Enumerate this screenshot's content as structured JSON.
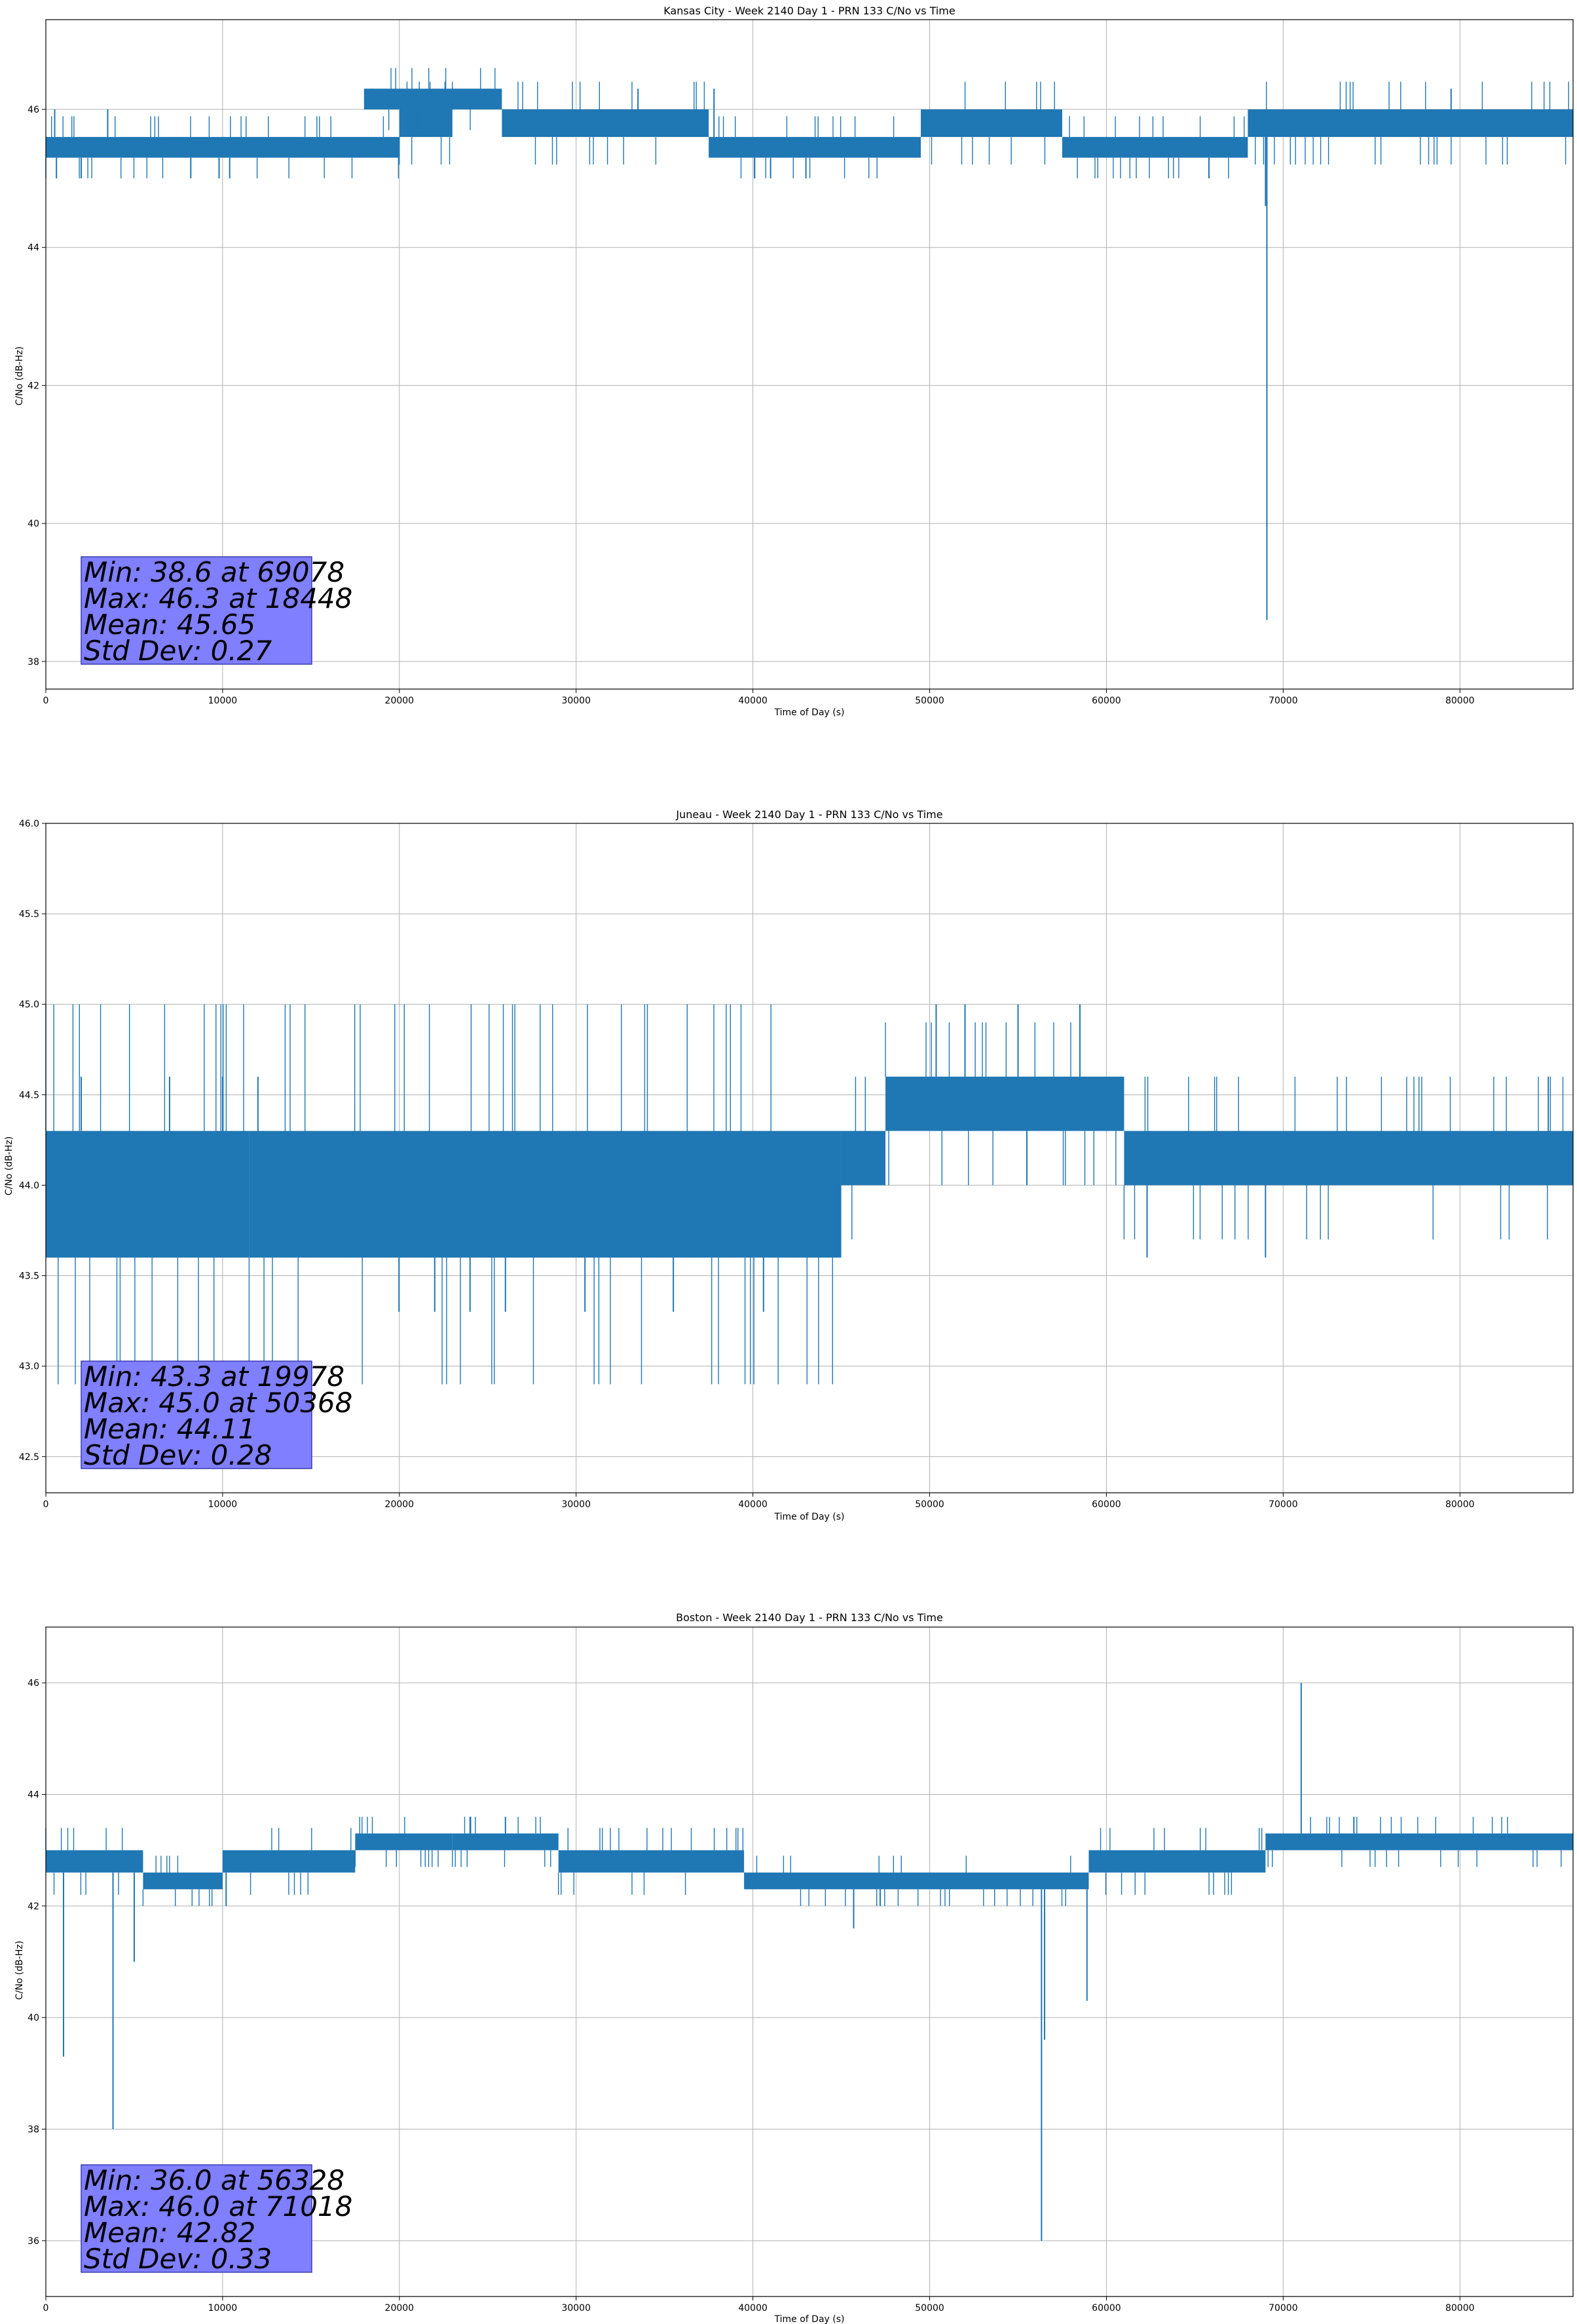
{
  "chart_data": [
    {
      "type": "line",
      "title": "Kansas City - Week 2140 Day 1 - PRN 133 C/No vs Time",
      "xlabel": "Time of Day (s)",
      "ylabel": "C/No (dB-Hz)",
      "xlim": [
        0,
        86400
      ],
      "ylim": [
        37.6,
        47.3
      ],
      "xticks": [
        0,
        10000,
        20000,
        30000,
        40000,
        50000,
        60000,
        70000,
        80000
      ],
      "yticks": [
        38,
        40,
        42,
        44,
        46
      ],
      "grid": true,
      "color": "#1f77b4",
      "series": [
        {
          "bands": [
            {
              "x": [
                0,
                20000
              ],
              "y": [
                45.3,
                45.6
              ]
            },
            {
              "x": [
                20000,
                23000
              ],
              "y": [
                45.6,
                46.0
              ]
            },
            {
              "x": [
                18000,
                25800
              ],
              "y": [
                46.0,
                46.3
              ]
            },
            {
              "x": [
                25800,
                37500
              ],
              "y": [
                45.6,
                46.0
              ]
            },
            {
              "x": [
                37500,
                49500
              ],
              "y": [
                45.3,
                45.6
              ]
            },
            {
              "x": [
                49500,
                57500
              ],
              "y": [
                45.6,
                46.0
              ]
            },
            {
              "x": [
                57500,
                68000
              ],
              "y": [
                45.3,
                45.6
              ]
            },
            {
              "x": [
                68000,
                86400
              ],
              "y": [
                45.6,
                46.0
              ]
            }
          ],
          "spikes": [
            {
              "x": 500,
              "y": 46.0
            },
            {
              "x": 600,
              "y": 45.0
            },
            {
              "x": 2000,
              "y": 45.0
            },
            {
              "x": 3500,
              "y": 46.0
            },
            {
              "x": 8200,
              "y": 45.0
            },
            {
              "x": 9800,
              "y": 45.0
            },
            {
              "x": 10400,
              "y": 45.0
            },
            {
              "x": 17500,
              "y": 45.3
            },
            {
              "x": 18448,
              "y": 46.3
            },
            {
              "x": 33500,
              "y": 46.3
            },
            {
              "x": 37800,
              "y": 46.3
            },
            {
              "x": 40100,
              "y": 45.0
            },
            {
              "x": 41000,
              "y": 45.0
            },
            {
              "x": 43000,
              "y": 45.0
            },
            {
              "x": 65800,
              "y": 45.0
            },
            {
              "x": 69000,
              "y": 44.6
            },
            {
              "x": 69078,
              "y": 38.6
            },
            {
              "x": 79500,
              "y": 46.3
            }
          ]
        }
      ],
      "stats": {
        "min_text": "Min: 38.6 at 69078",
        "max_text": "Max: 46.3 at 18448",
        "mean_text": "Mean: 45.65",
        "std_text": "Std Dev: 0.27"
      }
    },
    {
      "type": "line",
      "title": "Juneau - Week 2140 Day 1 - PRN 133 C/No vs Time",
      "xlabel": "Time of Day (s)",
      "ylabel": "C/No (dB-Hz)",
      "xlim": [
        0,
        86400
      ],
      "ylim": [
        42.3,
        46.0
      ],
      "xticks": [
        0,
        10000,
        20000,
        30000,
        40000,
        50000,
        60000,
        70000,
        80000
      ],
      "yticks": [
        42.5,
        43.0,
        43.5,
        44.0,
        44.5,
        45.0,
        45.5,
        46.0
      ],
      "ytick_labels": [
        "42.5",
        "43.0",
        "43.5",
        "44.0",
        "44.5",
        "45.0",
        "45.5",
        "46.0"
      ],
      "grid": true,
      "color": "#1f77b4",
      "series": [
        {
          "bands": [
            {
              "x": [
                0,
                11500
              ],
              "y": [
                43.6,
                44.3
              ]
            },
            {
              "x": [
                11500,
                45000
              ],
              "y": [
                43.6,
                44.3
              ]
            },
            {
              "x": [
                45000,
                47500
              ],
              "y": [
                44.0,
                44.3
              ]
            },
            {
              "x": [
                47500,
                61000
              ],
              "y": [
                44.3,
                44.6
              ]
            },
            {
              "x": [
                61000,
                86400
              ],
              "y": [
                44.0,
                44.3
              ]
            }
          ],
          "spikes": [
            {
              "x": 2000,
              "y": 44.6
            },
            {
              "x": 7000,
              "y": 44.6
            },
            {
              "x": 10000,
              "y": 44.6
            },
            {
              "x": 12000,
              "y": 44.6
            },
            {
              "x": 19978,
              "y": 43.3
            },
            {
              "x": 22000,
              "y": 43.3
            },
            {
              "x": 24000,
              "y": 43.3
            },
            {
              "x": 26000,
              "y": 43.3
            },
            {
              "x": 30500,
              "y": 43.3
            },
            {
              "x": 35500,
              "y": 43.3
            },
            {
              "x": 40600,
              "y": 43.3
            },
            {
              "x": 50368,
              "y": 45.0
            },
            {
              "x": 52000,
              "y": 45.0
            },
            {
              "x": 55000,
              "y": 45.0
            },
            {
              "x": 58500,
              "y": 45.0
            },
            {
              "x": 55500,
              "y": 44.0
            },
            {
              "x": 62300,
              "y": 43.6
            },
            {
              "x": 69000,
              "y": 43.6
            },
            {
              "x": 85000,
              "y": 44.6
            }
          ]
        }
      ],
      "stats": {
        "min_text": "Min: 43.3 at 19978",
        "max_text": "Max: 45.0 at 50368",
        "mean_text": "Mean: 44.11",
        "std_text": "Std Dev: 0.28"
      }
    },
    {
      "type": "line",
      "title": "Boston - Week 2140 Day 1 - PRN 133 C/No vs Time",
      "xlabel": "Time of Day (s)",
      "ylabel": "C/No (dB-Hz)",
      "xlim": [
        0,
        86400
      ],
      "ylim": [
        35.0,
        47.0
      ],
      "xticks": [
        0,
        10000,
        20000,
        30000,
        40000,
        50000,
        60000,
        70000,
        80000
      ],
      "yticks": [
        36,
        38,
        40,
        42,
        44,
        46
      ],
      "grid": true,
      "color": "#1f77b4",
      "series": [
        {
          "bands": [
            {
              "x": [
                0,
                5500
              ],
              "y": [
                42.6,
                43.0
              ]
            },
            {
              "x": [
                5500,
                10000
              ],
              "y": [
                42.3,
                42.6
              ]
            },
            {
              "x": [
                10000,
                17500
              ],
              "y": [
                42.6,
                43.0
              ]
            },
            {
              "x": [
                17500,
                23000
              ],
              "y": [
                43.0,
                43.3
              ]
            },
            {
              "x": [
                23000,
                29000
              ],
              "y": [
                43.0,
                43.3
              ]
            },
            {
              "x": [
                29000,
                39500
              ],
              "y": [
                42.6,
                43.0
              ]
            },
            {
              "x": [
                39500,
                59000
              ],
              "y": [
                42.3,
                42.6
              ]
            },
            {
              "x": [
                59000,
                69000
              ],
              "y": [
                42.6,
                43.0
              ]
            },
            {
              "x": [
                69000,
                86400
              ],
              "y": [
                43.0,
                43.3
              ]
            }
          ],
          "spikes": [
            {
              "x": 1000,
              "y": 39.3
            },
            {
              "x": 3800,
              "y": 38.0
            },
            {
              "x": 5000,
              "y": 41.0
            },
            {
              "x": 10200,
              "y": 42.0
            },
            {
              "x": 24000,
              "y": 43.6
            },
            {
              "x": 26000,
              "y": 43.6
            },
            {
              "x": 45700,
              "y": 41.6
            },
            {
              "x": 47200,
              "y": 42.0
            },
            {
              "x": 56328,
              "y": 36.0
            },
            {
              "x": 56500,
              "y": 39.6
            },
            {
              "x": 58900,
              "y": 40.3
            },
            {
              "x": 71018,
              "y": 46.0
            },
            {
              "x": 74000,
              "y": 43.6
            }
          ]
        }
      ],
      "stats": {
        "min_text": "Min: 36.0 at 56328",
        "max_text": "Max: 46.0 at 71018",
        "mean_text": "Mean: 42.82",
        "std_text": "Std Dev: 0.33"
      }
    }
  ]
}
